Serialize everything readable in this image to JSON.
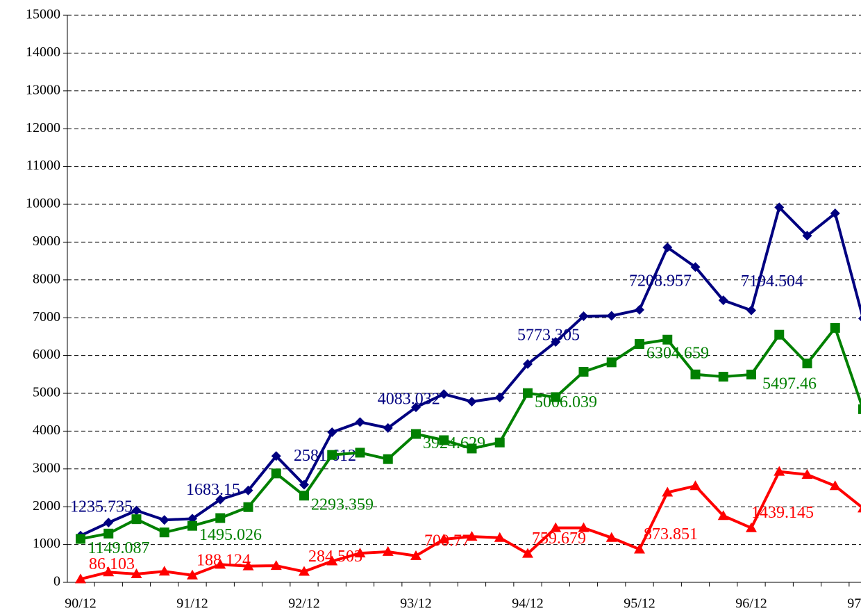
{
  "chart_data": {
    "type": "line",
    "categories": [
      "90/12",
      null,
      null,
      null,
      "91/12",
      null,
      null,
      null,
      "92/12",
      null,
      null,
      null,
      "93/12",
      null,
      null,
      null,
      "94/12",
      null,
      null,
      null,
      "95/12",
      null,
      null,
      null,
      "96/12",
      null,
      null,
      null,
      "97/12"
    ],
    "series": [
      {
        "name": null,
        "color": "#000080",
        "marker": "diamond",
        "values": [
          1235.735,
          1580,
          1900,
          1650,
          1683.15,
          2190,
          2430,
          3340,
          2581.612,
          3970,
          4240,
          4083.032,
          4630,
          4980,
          4780,
          4890,
          5773.305,
          6360,
          7040,
          7050,
          7208.957,
          8860,
          8340,
          7460,
          7194.504,
          9920,
          9170,
          9760,
          6980
        ],
        "value_labels": [
          "1235.735",
          null,
          null,
          null,
          "1683.15",
          null,
          null,
          null,
          "2581.612",
          null,
          null,
          "4083.032",
          null,
          null,
          null,
          null,
          "5773.305",
          null,
          null,
          null,
          "7208.957",
          null,
          null,
          null,
          "7194.504",
          null,
          null,
          null,
          null
        ]
      },
      {
        "name": null,
        "color": "#008000",
        "marker": "square",
        "values": [
          1149.087,
          1290,
          1670,
          1320,
          1495.026,
          1700,
          1990,
          2880,
          2293.359,
          3370,
          3430,
          3260,
          3924.629,
          3760,
          3540,
          3700,
          5006.039,
          4900,
          5570,
          5820,
          6304.659,
          6420,
          5500,
          5440,
          5497.46,
          6550,
          5790,
          6730,
          4580
        ],
        "value_labels": [
          "1149.087",
          null,
          null,
          null,
          "1495.026",
          null,
          null,
          null,
          "2293.359",
          null,
          null,
          null,
          "3924.629",
          null,
          null,
          null,
          "5006.039",
          null,
          null,
          null,
          "6304.659",
          null,
          null,
          null,
          "5497.46",
          null,
          null,
          null,
          null
        ]
      },
      {
        "name": null,
        "color": "#ff0000",
        "marker": "triangle",
        "values": [
          86.103,
          270,
          220,
          290,
          188.124,
          470,
          430,
          440,
          284.503,
          560,
          770,
          810,
          700.77,
          1140,
          1210,
          1180,
          759.679,
          1440,
          1440,
          1180,
          873.851,
          2380,
          2550,
          1760,
          1439.145,
          2930,
          2850,
          2550,
          1960
        ],
        "value_labels": [
          "86.103",
          null,
          null,
          null,
          "188.124",
          null,
          null,
          null,
          "284.503",
          null,
          null,
          null,
          "700.77",
          null,
          null,
          null,
          "759.679",
          null,
          null,
          null,
          "873.851",
          null,
          null,
          null,
          "1439.145",
          null,
          null,
          null,
          null
        ]
      }
    ],
    "ylim": [
      0,
      15000
    ],
    "yticks": [
      0,
      1000,
      2000,
      3000,
      4000,
      5000,
      6000,
      7000,
      8000,
      9000,
      10000,
      11000,
      12000,
      13000,
      14000,
      15000
    ],
    "grid": true
  }
}
